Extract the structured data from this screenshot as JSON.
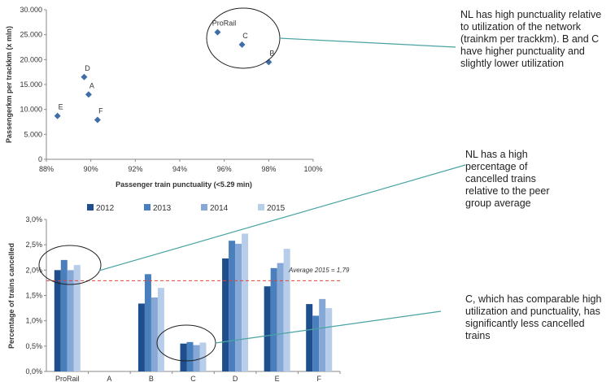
{
  "colors": {
    "scatter_point": "#3f6ea6",
    "series": [
      "#1f4e8c",
      "#4a7fbd",
      "#86a8d6",
      "#b8cdea"
    ],
    "average_line": "#e34234",
    "callout_line": "#4aa3a3"
  },
  "chart_data": [
    {
      "type": "scatter",
      "xlabel": "Passenger train punctuality (<5.29 min)",
      "ylabel": "Passengerkm per trackkm (x mln)",
      "xlim": [
        0.88,
        1.0
      ],
      "ylim": [
        0,
        30000
      ],
      "x_ticks": [
        "88%",
        "90%",
        "92%",
        "94%",
        "96%",
        "98%",
        "100%"
      ],
      "y_ticks": [
        "0",
        "5.000",
        "10.000",
        "15.000",
        "20.000",
        "25.000",
        "30.000"
      ],
      "points": [
        {
          "label": "ProRail",
          "x": 0.957,
          "y": 25500
        },
        {
          "label": "C",
          "x": 0.968,
          "y": 23000
        },
        {
          "label": "B",
          "x": 0.98,
          "y": 19500
        },
        {
          "label": "D",
          "x": 0.897,
          "y": 16500
        },
        {
          "label": "A",
          "x": 0.899,
          "y": 13000
        },
        {
          "label": "E",
          "x": 0.885,
          "y": 8700
        },
        {
          "label": "F",
          "x": 0.903,
          "y": 7900
        }
      ]
    },
    {
      "type": "bar",
      "ylabel": "Percentage of trains cancelled",
      "ylim": [
        0,
        0.03
      ],
      "y_ticks": [
        "0,0%",
        "0,5%",
        "1,0%",
        "1,5%",
        "2,0%",
        "2,5%",
        "3,0%"
      ],
      "categories": [
        "ProRail",
        "A",
        "B",
        "C",
        "D",
        "E",
        "F"
      ],
      "series": [
        {
          "name": "2012",
          "values": [
            0.02,
            null,
            0.0134,
            0.0055,
            0.0223,
            0.0168,
            0.0133
          ]
        },
        {
          "name": "2013",
          "values": [
            0.022,
            null,
            0.0192,
            0.0058,
            0.0258,
            0.0204,
            0.011
          ]
        },
        {
          "name": "2014",
          "values": [
            0.02,
            null,
            0.0146,
            0.0052,
            0.0252,
            0.0214,
            0.0143
          ]
        },
        {
          "name": "2015",
          "values": [
            0.021,
            null,
            0.0165,
            0.0057,
            0.0272,
            0.0242,
            0.0125
          ]
        }
      ],
      "average": {
        "value": 0.0179,
        "label": "Average 2015 = 1,79"
      },
      "legend": "top"
    }
  ],
  "annotations": [
    {
      "text": "NL has high punctuality relative to utilization of the network (trainkm per trackkm). B and C have higher punctuality and slightly lower utilization"
    },
    {
      "text": "NL has a high percentage of cancelled trains relative to the peer group average"
    },
    {
      "text": "C, which has comparable high utilization and punctuality, has significantly less cancelled trains"
    }
  ]
}
